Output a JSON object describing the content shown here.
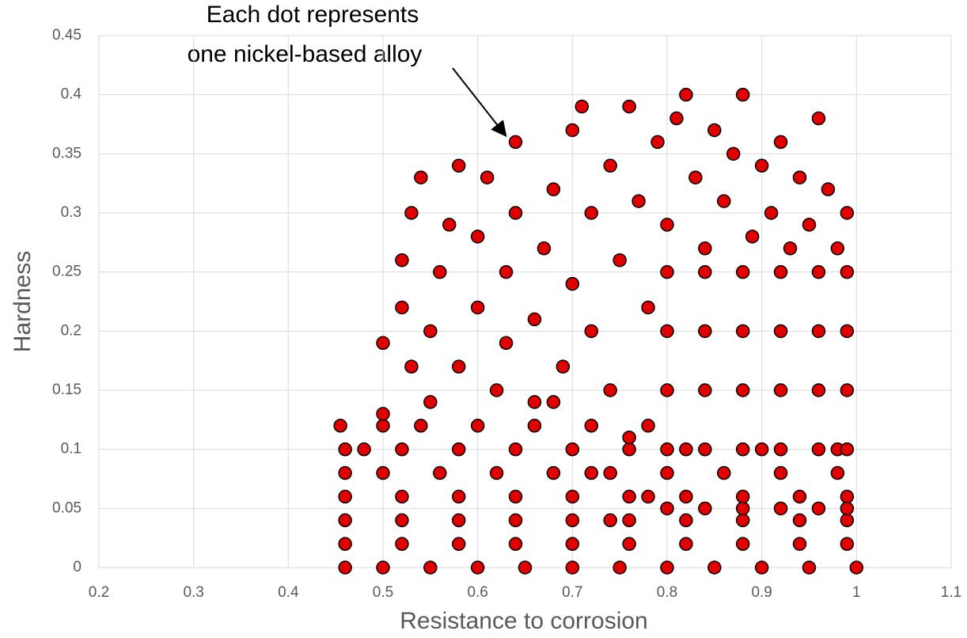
{
  "chart_data": {
    "type": "scatter",
    "annotation": [
      "Each dot represents",
      "one nickel-based alloy"
    ],
    "xlabel": "Resistance to corrosion",
    "ylabel": "Hardness",
    "xlim": [
      0.2,
      1.1
    ],
    "xticks": [
      0.2,
      0.3,
      0.4,
      0.5,
      0.6,
      0.7,
      0.8,
      0.9,
      1,
      1.1
    ],
    "ylim": [
      0,
      0.45
    ],
    "yticks": [
      0,
      0.05,
      0.1,
      0.15,
      0.2,
      0.25,
      0.3,
      0.35,
      0.4,
      0.45
    ],
    "grid": true,
    "series": [
      {
        "color": "#e00000",
        "x": [
          0.46,
          0.5,
          0.55,
          0.6,
          0.65,
          0.7,
          0.75,
          0.8,
          0.85,
          0.9,
          0.95,
          1.0,
          0.46,
          0.52,
          0.58,
          0.64,
          0.7,
          0.76,
          0.82,
          0.88,
          0.94,
          0.99,
          0.46,
          0.52,
          0.58,
          0.64,
          0.7,
          0.76,
          0.82,
          0.88,
          0.94,
          0.99,
          0.46,
          0.52,
          0.58,
          0.64,
          0.7,
          0.76,
          0.82,
          0.88,
          0.94,
          0.99,
          0.46,
          0.5,
          0.56,
          0.62,
          0.68,
          0.74,
          0.8,
          0.86,
          0.92,
          0.98,
          0.46,
          0.48,
          0.52,
          0.58,
          0.64,
          0.7,
          0.76,
          0.82,
          0.9,
          0.98,
          0.455,
          0.5,
          0.54,
          0.6,
          0.66,
          0.72,
          0.78,
          0.5,
          0.52,
          0.52,
          0.53,
          0.54,
          0.55,
          0.56,
          0.57,
          0.58,
          0.58,
          0.6,
          0.6,
          0.61,
          0.62,
          0.63,
          0.63,
          0.64,
          0.64,
          0.66,
          0.66,
          0.67,
          0.68,
          0.69,
          0.7,
          0.7,
          0.71,
          0.72,
          0.72,
          0.74,
          0.75,
          0.76,
          0.77,
          0.78,
          0.79,
          0.8,
          0.81,
          0.82,
          0.83,
          0.84,
          0.85,
          0.86,
          0.87,
          0.88,
          0.89,
          0.9,
          0.91,
          0.92,
          0.93,
          0.94,
          0.95,
          0.96,
          0.97,
          0.98,
          0.99,
          0.55,
          0.5,
          0.53,
          0.68,
          0.74,
          0.8,
          0.84,
          0.88,
          0.92,
          0.96,
          0.99,
          0.8,
          0.84,
          0.88,
          0.92,
          0.96,
          0.99,
          0.8,
          0.84,
          0.88,
          0.92,
          0.96,
          0.99,
          0.8,
          0.84,
          0.88,
          0.92,
          0.96,
          0.99,
          0.8,
          0.84,
          0.88,
          0.92,
          0.96,
          0.99,
          0.72,
          0.76,
          0.78,
          0.74
        ],
        "y": [
          0,
          0,
          0,
          0,
          0,
          0,
          0,
          0,
          0,
          0,
          0,
          0,
          0.02,
          0.02,
          0.02,
          0.02,
          0.02,
          0.02,
          0.02,
          0.02,
          0.02,
          0.02,
          0.04,
          0.04,
          0.04,
          0.04,
          0.04,
          0.04,
          0.04,
          0.04,
          0.04,
          0.04,
          0.06,
          0.06,
          0.06,
          0.06,
          0.06,
          0.06,
          0.06,
          0.06,
          0.06,
          0.06,
          0.08,
          0.08,
          0.08,
          0.08,
          0.08,
          0.08,
          0.08,
          0.08,
          0.08,
          0.08,
          0.1,
          0.1,
          0.1,
          0.1,
          0.1,
          0.1,
          0.1,
          0.1,
          0.1,
          0.1,
          0.12,
          0.12,
          0.12,
          0.12,
          0.12,
          0.12,
          0.12,
          0.19,
          0.22,
          0.26,
          0.3,
          0.33,
          0.2,
          0.25,
          0.29,
          0.34,
          0.17,
          0.22,
          0.28,
          0.33,
          0.15,
          0.19,
          0.25,
          0.3,
          0.36,
          0.14,
          0.21,
          0.27,
          0.32,
          0.17,
          0.24,
          0.37,
          0.39,
          0.3,
          0.2,
          0.34,
          0.26,
          0.39,
          0.31,
          0.22,
          0.36,
          0.29,
          0.38,
          0.4,
          0.33,
          0.27,
          0.37,
          0.31,
          0.35,
          0.4,
          0.28,
          0.34,
          0.3,
          0.36,
          0.27,
          0.33,
          0.29,
          0.38,
          0.32,
          0.27,
          0.3,
          0.14,
          0.13,
          0.17,
          0.14,
          0.15,
          0.05,
          0.05,
          0.05,
          0.05,
          0.05,
          0.05,
          0.1,
          0.1,
          0.1,
          0.1,
          0.1,
          0.1,
          0.15,
          0.15,
          0.15,
          0.15,
          0.15,
          0.15,
          0.2,
          0.2,
          0.2,
          0.2,
          0.2,
          0.2,
          0.25,
          0.25,
          0.25,
          0.25,
          0.25,
          0.25,
          0.08,
          0.11,
          0.06,
          0.04
        ]
      }
    ]
  }
}
